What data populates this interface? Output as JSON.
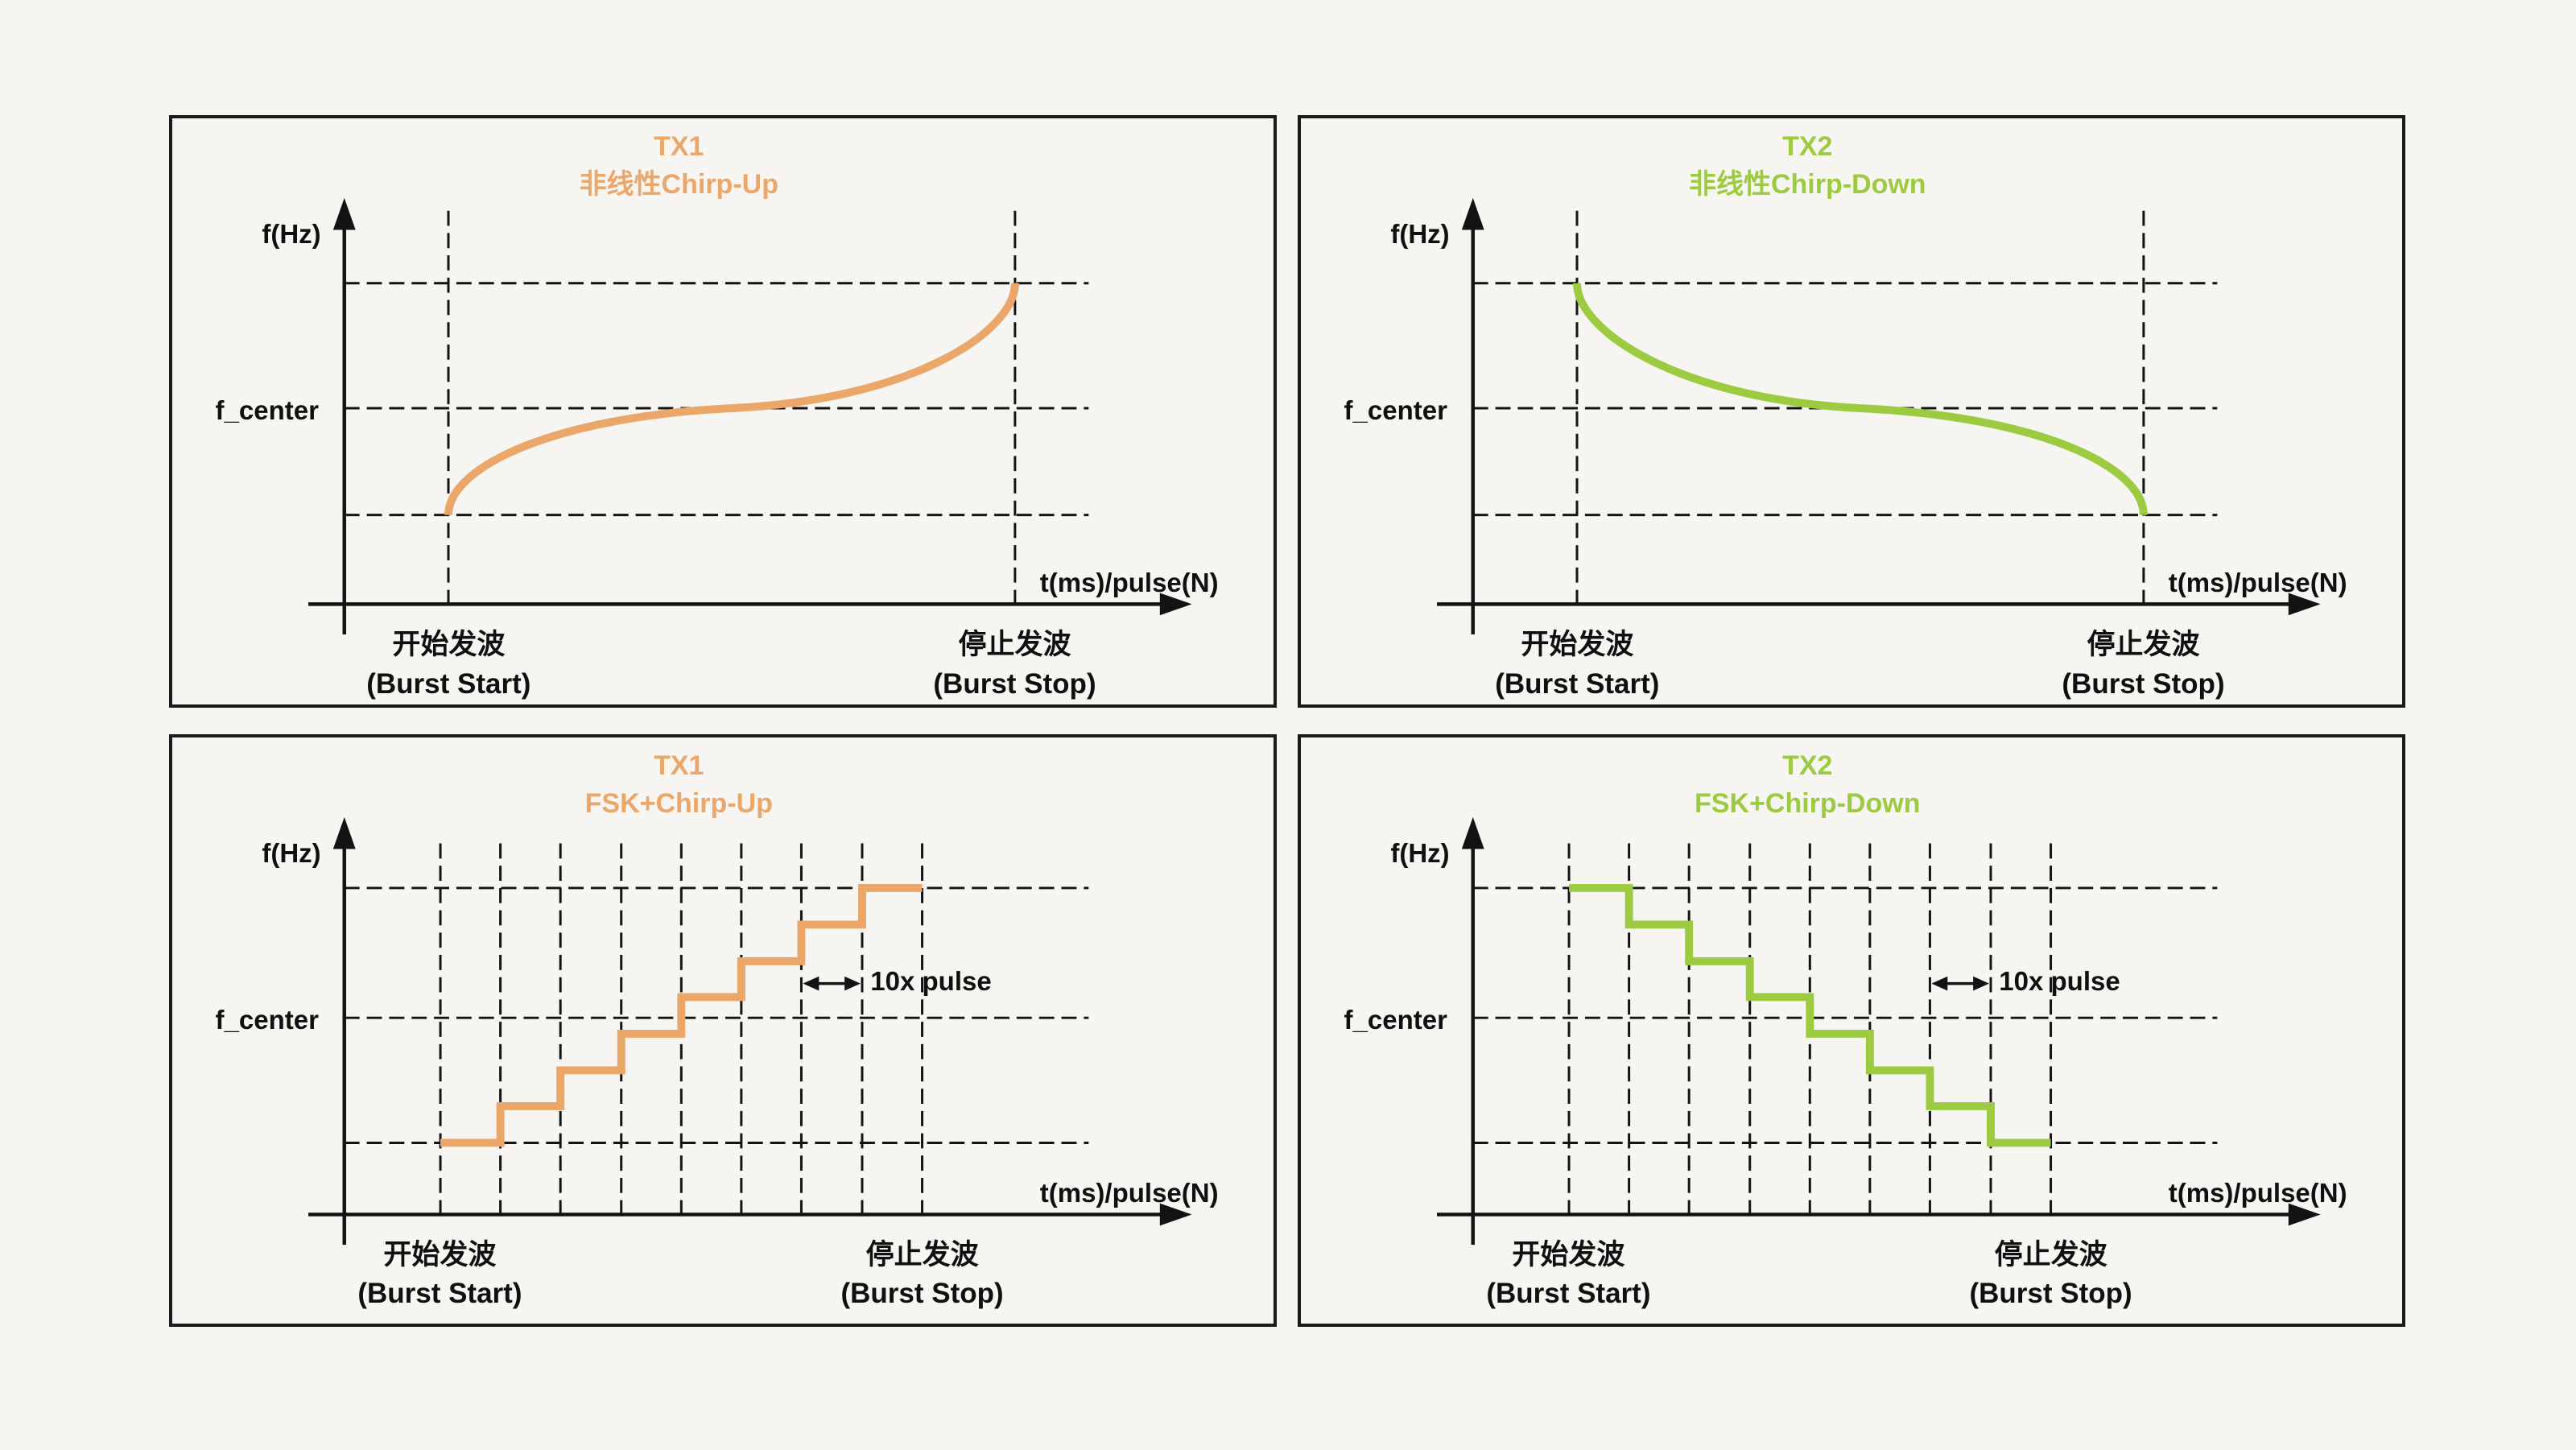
{
  "background": "#F7F5F1",
  "panel_border_color": "#1B1B1B",
  "axis_color": "#131313",
  "accent_orange": "#EBA76A",
  "accent_green": "#9CCB41",
  "panels": [
    {
      "id": "tx1-nonlinear-chirp-up",
      "title": {
        "line1": "TX1",
        "line2": "非线性Chirp-Up"
      },
      "color": "#EBA76A",
      "curve": "s_up",
      "y_axis_label": "f(Hz)",
      "f_center_label": "f_center",
      "x_axis_label": "t(ms)/pulse(N)",
      "burst_start": {
        "zh": "开始发波",
        "en": "(Burst Start)"
      },
      "burst_stop": {
        "zh": "停止发波",
        "en": "(Burst Stop)"
      }
    },
    {
      "id": "tx2-nonlinear-chirp-down",
      "title": {
        "line1": "TX2",
        "line2": "非线性Chirp-Down"
      },
      "color": "#9CCB41",
      "curve": "s_down",
      "y_axis_label": "f(Hz)",
      "f_center_label": "f_center",
      "x_axis_label": "t(ms)/pulse(N)",
      "burst_start": {
        "zh": "开始发波",
        "en": "(Burst Start)"
      },
      "burst_stop": {
        "zh": "停止发波",
        "en": "(Burst Stop)"
      }
    },
    {
      "id": "tx1-fsk-chirp-up",
      "title": {
        "line1": "TX1",
        "line2": "FSK+Chirp-Up"
      },
      "color": "#EBA76A",
      "curve": "steps_up",
      "annotation": "10x pulse",
      "y_axis_label": "f(Hz)",
      "f_center_label": "f_center",
      "x_axis_label": "t(ms)/pulse(N)",
      "burst_start": {
        "zh": "开始发波",
        "en": "(Burst Start)"
      },
      "burst_stop": {
        "zh": "停止发波",
        "en": "(Burst Stop)"
      }
    },
    {
      "id": "tx2-fsk-chirp-down",
      "title": {
        "line1": "TX2",
        "line2": "FSK+Chirp-Down"
      },
      "color": "#9CCB41",
      "curve": "steps_down",
      "annotation": "10x pulse",
      "y_axis_label": "f(Hz)",
      "f_center_label": "f_center",
      "x_axis_label": "t(ms)/pulse(N)",
      "burst_start": {
        "zh": "开始发波",
        "en": "(Burst Start)"
      },
      "burst_stop": {
        "zh": "停止发波",
        "en": "(Burst Stop)"
      }
    }
  ],
  "chart_data": [
    {
      "type": "line",
      "title": "TX1 非线性Chirp-Up",
      "xlabel": "t(ms)/pulse(N)",
      "ylabel": "f(Hz)",
      "x_start_label": "开始发波 (Burst Start)",
      "x_end_label": "停止发波 (Burst Stop)",
      "y_reference": "f_center",
      "shape": "nonlinear S-shaped chirp rising from f_min at burst start to f_max at burst stop; steep at both ends, shallow through f_center at the midpoint",
      "normalized_points": [
        [
          0,
          0
        ],
        [
          0.03,
          0.2
        ],
        [
          0.1,
          0.33
        ],
        [
          0.25,
          0.42
        ],
        [
          0.5,
          0.5
        ],
        [
          0.75,
          0.58
        ],
        [
          0.9,
          0.67
        ],
        [
          0.97,
          0.8
        ],
        [
          1,
          1
        ]
      ],
      "grid": "dashed reference lines at f_max, f_center, f_min and at burst start/stop"
    },
    {
      "type": "line",
      "title": "TX2 非线性Chirp-Down",
      "xlabel": "t(ms)/pulse(N)",
      "ylabel": "f(Hz)",
      "x_start_label": "开始发波 (Burst Start)",
      "x_end_label": "停止发波 (Burst Stop)",
      "y_reference": "f_center",
      "shape": "nonlinear S-shaped chirp falling from f_max at burst start to f_min at burst stop; steep at both ends, shallow through f_center at the midpoint",
      "normalized_points": [
        [
          0,
          1
        ],
        [
          0.03,
          0.8
        ],
        [
          0.1,
          0.67
        ],
        [
          0.25,
          0.58
        ],
        [
          0.5,
          0.5
        ],
        [
          0.75,
          0.42
        ],
        [
          0.9,
          0.33
        ],
        [
          0.97,
          0.2
        ],
        [
          1,
          0
        ]
      ],
      "grid": "dashed reference lines at f_max, f_center, f_min and at burst start/stop"
    },
    {
      "type": "step",
      "title": "TX1 FSK+Chirp-Up",
      "xlabel": "t(ms)/pulse(N)",
      "ylabel": "f(Hz)",
      "x_start_label": "开始发波 (Burst Start)",
      "x_end_label": "停止发波 (Burst Stop)",
      "y_reference": "f_center",
      "steps": 8,
      "pulses_per_step": 10,
      "annotation": "10x pulse",
      "direction": "up",
      "levels_normalized": [
        0,
        0.143,
        0.286,
        0.429,
        0.571,
        0.714,
        0.857,
        1
      ],
      "grid": "9 dashed vertical gridlines (one per step boundary); dashed horizontal lines at f_max, f_center, f_min"
    },
    {
      "type": "step",
      "title": "TX2 FSK+Chirp-Down",
      "xlabel": "t(ms)/pulse(N)",
      "ylabel": "f(Hz)",
      "x_start_label": "开始发波 (Burst Start)",
      "x_end_label": "停止发波 (Burst Stop)",
      "y_reference": "f_center",
      "steps": 8,
      "pulses_per_step": 10,
      "annotation": "10x pulse",
      "direction": "down",
      "levels_normalized": [
        1,
        0.857,
        0.714,
        0.571,
        0.429,
        0.286,
        0.143,
        0
      ],
      "grid": "9 dashed vertical gridlines (one per step boundary); dashed horizontal lines at f_max, f_center, f_min"
    }
  ]
}
